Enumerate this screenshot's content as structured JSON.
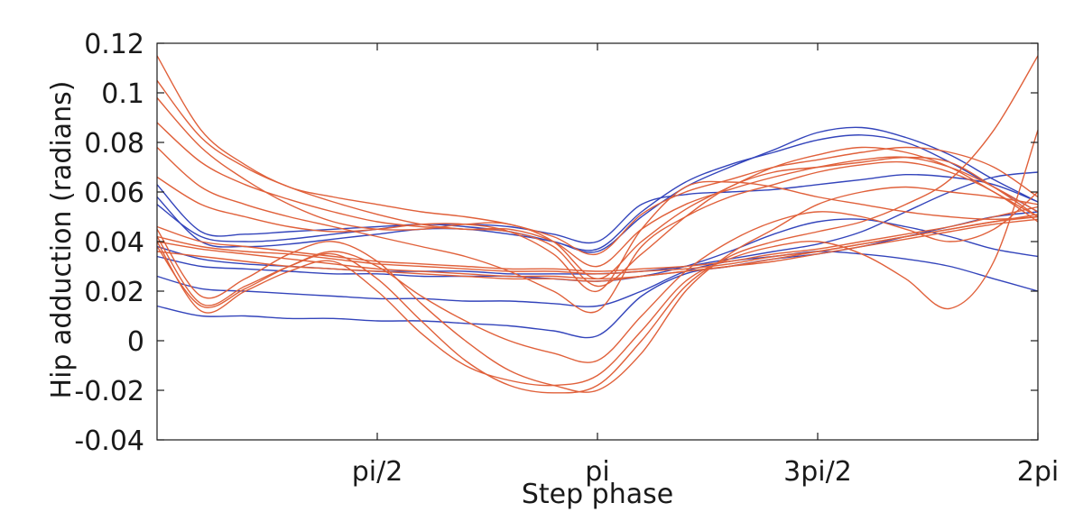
{
  "chart_data": {
    "type": "line",
    "title": "",
    "xlabel": "Step phase",
    "ylabel": "Hip adduction (radians)",
    "xlim": [
      0,
      6.2832
    ],
    "ylim": [
      -0.04,
      0.12
    ],
    "x_ticks": [
      {
        "value": 1.5708,
        "label": "pi/2"
      },
      {
        "value": 3.1416,
        "label": "pi"
      },
      {
        "value": 4.7124,
        "label": "3pi/2"
      },
      {
        "value": 6.2832,
        "label": "2pi"
      }
    ],
    "y_ticks": [
      {
        "value": 0.12,
        "label": "0.12"
      },
      {
        "value": 0.1,
        "label": "0.1"
      },
      {
        "value": 0.08,
        "label": "0.08"
      },
      {
        "value": 0.06,
        "label": "0.06"
      },
      {
        "value": 0.04,
        "label": "0.04"
      },
      {
        "value": 0.02,
        "label": "0.02"
      },
      {
        "value": 0.0,
        "label": "0"
      },
      {
        "value": -0.02,
        "label": "-0.02"
      },
      {
        "value": -0.04,
        "label": "-0.04"
      }
    ],
    "grid": false,
    "legend": "none",
    "colors": {
      "blue": "#3344bb",
      "orange": "#e0603a"
    },
    "x": [
      0,
      0.3142,
      0.6283,
      0.9425,
      1.2566,
      1.5708,
      1.885,
      2.1991,
      2.5133,
      2.8274,
      3.1416,
      3.4558,
      3.7699,
      4.0841,
      4.3982,
      4.7124,
      5.0265,
      5.3407,
      5.6549,
      5.969,
      6.2832
    ],
    "series": [
      {
        "color": "blue",
        "values": [
          0.063,
          0.044,
          0.043,
          0.044,
          0.045,
          0.046,
          0.047,
          0.047,
          0.046,
          0.043,
          0.04,
          0.055,
          0.059,
          0.06,
          0.061,
          0.063,
          0.065,
          0.067,
          0.066,
          0.063,
          0.056
        ]
      },
      {
        "color": "blue",
        "values": [
          0.058,
          0.04,
          0.038,
          0.039,
          0.041,
          0.043,
          0.045,
          0.045,
          0.043,
          0.04,
          0.036,
          0.05,
          0.062,
          0.07,
          0.077,
          0.084,
          0.086,
          0.082,
          0.075,
          0.065,
          0.056
        ]
      },
      {
        "color": "blue",
        "values": [
          0.055,
          0.042,
          0.04,
          0.041,
          0.043,
          0.045,
          0.047,
          0.046,
          0.044,
          0.04,
          0.037,
          0.052,
          0.064,
          0.071,
          0.076,
          0.081,
          0.083,
          0.08,
          0.072,
          0.062,
          0.052
        ]
      },
      {
        "color": "blue",
        "values": [
          0.038,
          0.033,
          0.031,
          0.03,
          0.029,
          0.028,
          0.028,
          0.028,
          0.027,
          0.027,
          0.027,
          0.028,
          0.03,
          0.033,
          0.036,
          0.039,
          0.044,
          0.052,
          0.06,
          0.066,
          0.068
        ]
      },
      {
        "color": "blue",
        "values": [
          0.034,
          0.03,
          0.029,
          0.028,
          0.027,
          0.027,
          0.026,
          0.026,
          0.026,
          0.025,
          0.024,
          0.026,
          0.03,
          0.036,
          0.043,
          0.048,
          0.049,
          0.046,
          0.042,
          0.037,
          0.034
        ]
      },
      {
        "color": "blue",
        "values": [
          0.026,
          0.021,
          0.02,
          0.019,
          0.018,
          0.017,
          0.017,
          0.016,
          0.016,
          0.015,
          0.014,
          0.02,
          0.028,
          0.032,
          0.034,
          0.036,
          0.035,
          0.033,
          0.03,
          0.025,
          0.02
        ]
      },
      {
        "color": "blue",
        "values": [
          0.014,
          0.01,
          0.01,
          0.009,
          0.009,
          0.008,
          0.008,
          0.007,
          0.006,
          0.004,
          0.002,
          0.018,
          0.027,
          0.03,
          0.033,
          0.035,
          0.038,
          0.042,
          0.046,
          0.05,
          0.052
        ]
      },
      {
        "color": "orange",
        "values": [
          0.115,
          0.085,
          0.071,
          0.062,
          0.058,
          0.055,
          0.052,
          0.05,
          0.047,
          0.042,
          0.035,
          0.051,
          0.06,
          0.065,
          0.07,
          0.073,
          0.076,
          0.078,
          0.076,
          0.07,
          0.058
        ]
      },
      {
        "color": "orange",
        "values": [
          0.105,
          0.082,
          0.07,
          0.062,
          0.056,
          0.051,
          0.047,
          0.045,
          0.045,
          0.04,
          0.03,
          0.045,
          0.055,
          0.061,
          0.066,
          0.07,
          0.073,
          0.074,
          0.07,
          0.062,
          0.052
        ]
      },
      {
        "color": "orange",
        "values": [
          0.098,
          0.078,
          0.065,
          0.055,
          0.048,
          0.045,
          0.045,
          0.047,
          0.047,
          0.04,
          0.025,
          0.04,
          0.053,
          0.062,
          0.07,
          0.075,
          0.078,
          0.076,
          0.07,
          0.06,
          0.05
        ]
      },
      {
        "color": "orange",
        "values": [
          0.088,
          0.072,
          0.063,
          0.057,
          0.052,
          0.048,
          0.046,
          0.045,
          0.044,
          0.038,
          0.022,
          0.035,
          0.05,
          0.062,
          0.068,
          0.07,
          0.072,
          0.074,
          0.072,
          0.062,
          0.05
        ]
      },
      {
        "color": "orange",
        "values": [
          0.078,
          0.062,
          0.055,
          0.05,
          0.046,
          0.042,
          0.038,
          0.034,
          0.028,
          0.02,
          0.012,
          0.038,
          0.05,
          0.058,
          0.063,
          0.068,
          0.071,
          0.072,
          0.068,
          0.06,
          0.048
        ]
      },
      {
        "color": "orange",
        "values": [
          0.066,
          0.055,
          0.05,
          0.046,
          0.044,
          0.045,
          0.047,
          0.047,
          0.044,
          0.035,
          0.02,
          0.045,
          0.062,
          0.064,
          0.062,
          0.058,
          0.055,
          0.052,
          0.05,
          0.049,
          0.05
        ]
      },
      {
        "color": "orange",
        "values": [
          0.046,
          0.04,
          0.038,
          0.036,
          0.034,
          0.032,
          0.031,
          0.03,
          0.029,
          0.029,
          0.028,
          0.029,
          0.03,
          0.032,
          0.035,
          0.037,
          0.04,
          0.043,
          0.046,
          0.05,
          0.054
        ]
      },
      {
        "color": "orange",
        "values": [
          0.042,
          0.038,
          0.036,
          0.035,
          0.033,
          0.031,
          0.03,
          0.029,
          0.028,
          0.028,
          0.027,
          0.028,
          0.029,
          0.031,
          0.034,
          0.036,
          0.039,
          0.042,
          0.045,
          0.048,
          0.051
        ]
      },
      {
        "color": "orange",
        "values": [
          0.04,
          0.037,
          0.035,
          0.033,
          0.031,
          0.029,
          0.028,
          0.027,
          0.026,
          0.026,
          0.025,
          0.026,
          0.028,
          0.03,
          0.033,
          0.036,
          0.039,
          0.042,
          0.045,
          0.048,
          0.05
        ]
      },
      {
        "color": "orange",
        "values": [
          0.036,
          0.034,
          0.032,
          0.03,
          0.029,
          0.028,
          0.027,
          0.026,
          0.025,
          0.025,
          0.024,
          0.026,
          0.028,
          0.03,
          0.032,
          0.035,
          0.038,
          0.041,
          0.044,
          0.047,
          0.049
        ]
      },
      {
        "color": "orange",
        "values": [
          0.045,
          0.018,
          0.025,
          0.035,
          0.04,
          0.032,
          0.015,
          0.0,
          -0.012,
          -0.018,
          -0.02,
          -0.005,
          0.02,
          0.035,
          0.045,
          0.055,
          0.06,
          0.062,
          0.06,
          0.058,
          0.055
        ]
      },
      {
        "color": "orange",
        "values": [
          0.042,
          0.015,
          0.022,
          0.03,
          0.035,
          0.025,
          0.008,
          -0.008,
          -0.018,
          -0.021,
          -0.018,
          0.0,
          0.022,
          0.034,
          0.04,
          0.044,
          0.048,
          0.055,
          0.065,
          0.085,
          0.115
        ]
      },
      {
        "color": "orange",
        "values": [
          0.04,
          0.012,
          0.02,
          0.028,
          0.032,
          0.02,
          0.003,
          -0.01,
          -0.016,
          -0.018,
          -0.014,
          0.004,
          0.024,
          0.033,
          0.038,
          0.04,
          0.035,
          0.025,
          0.013,
          0.032,
          0.085
        ]
      },
      {
        "color": "orange",
        "values": [
          0.038,
          0.014,
          0.021,
          0.03,
          0.036,
          0.03,
          0.018,
          0.008,
          0.0,
          -0.005,
          -0.008,
          0.01,
          0.028,
          0.04,
          0.048,
          0.052,
          0.05,
          0.045,
          0.04,
          0.045,
          0.06
        ]
      }
    ]
  }
}
